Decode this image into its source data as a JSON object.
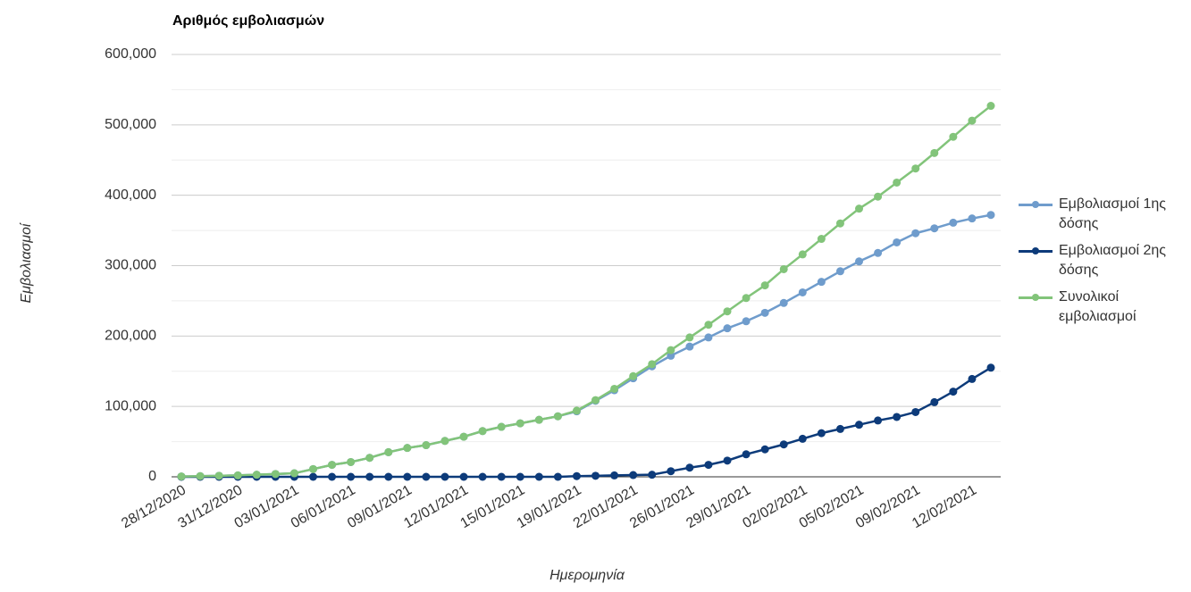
{
  "chart_data": {
    "type": "line",
    "title": "Αριθμός εμβολιασμών",
    "y_label": "Εμβολιασμοί",
    "x_label": "Ημερομηνία",
    "categories": [
      "28/12/2020",
      null,
      null,
      "31/12/2020",
      null,
      null,
      "03/01/2021",
      null,
      null,
      "06/01/2021",
      null,
      null,
      "09/01/2021",
      null,
      null,
      "12/01/2021",
      null,
      null,
      "15/01/2021",
      null,
      null,
      "19/01/2021",
      null,
      null,
      "22/01/2021",
      null,
      null,
      "26/01/2021",
      null,
      null,
      "29/01/2021",
      null,
      null,
      "02/02/2021",
      null,
      null,
      "05/02/2021",
      null,
      null,
      "09/02/2021",
      null,
      null,
      "12/02/2021",
      null
    ],
    "series": [
      {
        "name": "Εμβολιασμοί 1ης δόσης",
        "color": "#6f9ccc",
        "values": [
          500,
          1000,
          1500,
          2000,
          3000,
          4000,
          5000,
          11000,
          17000,
          21000,
          27000,
          35000,
          41000,
          45000,
          51000,
          57000,
          65000,
          71000,
          76000,
          81000,
          86000,
          93000,
          108000,
          123000,
          140000,
          157000,
          172000,
          185000,
          198000,
          211000,
          221000,
          233000,
          247000,
          262000,
          277000,
          292000,
          306000,
          318000,
          333000,
          346000,
          353000,
          361000,
          367000,
          372000
        ]
      },
      {
        "name": "Εμβολιασμοί 2ης δόσης",
        "color": "#0d3b7a",
        "values": [
          0,
          0,
          0,
          0,
          0,
          0,
          0,
          0,
          0,
          0,
          0,
          0,
          0,
          0,
          0,
          0,
          0,
          0,
          0,
          0,
          0,
          1000,
          1500,
          2000,
          2500,
          3000,
          8000,
          13000,
          17000,
          23000,
          32000,
          39000,
          46000,
          54000,
          62000,
          68000,
          74000,
          80000,
          85000,
          92000,
          106000,
          121000,
          139000,
          155000
        ]
      },
      {
        "name": "Συνολικοί εμβολιασμοί",
        "color": "#82c47a",
        "values": [
          500,
          1000,
          1500,
          2000,
          3000,
          4000,
          5000,
          11000,
          17000,
          21000,
          27000,
          35000,
          41000,
          45000,
          51000,
          57000,
          65000,
          71000,
          76000,
          81000,
          86000,
          94000,
          109000,
          125000,
          143000,
          160000,
          180000,
          198000,
          216000,
          235000,
          254000,
          272000,
          295000,
          316000,
          338000,
          360000,
          381000,
          398000,
          418000,
          438000,
          460000,
          483000,
          506000,
          527000
        ]
      }
    ],
    "ylim": [
      0,
      600000
    ],
    "yticks": [
      0,
      {
        "value": 100000,
        "label": "100,000"
      },
      {
        "value": 200000,
        "label": "200,000"
      },
      {
        "value": 300000,
        "label": "300,000"
      },
      {
        "value": 400000,
        "label": "400,000"
      },
      {
        "value": 500000,
        "label": "500,000"
      },
      {
        "value": 600000,
        "label": "600,000"
      }
    ],
    "minor_yticks": [
      50000,
      150000,
      250000,
      350000,
      450000,
      550000
    ],
    "grid": true,
    "legend": "right"
  }
}
